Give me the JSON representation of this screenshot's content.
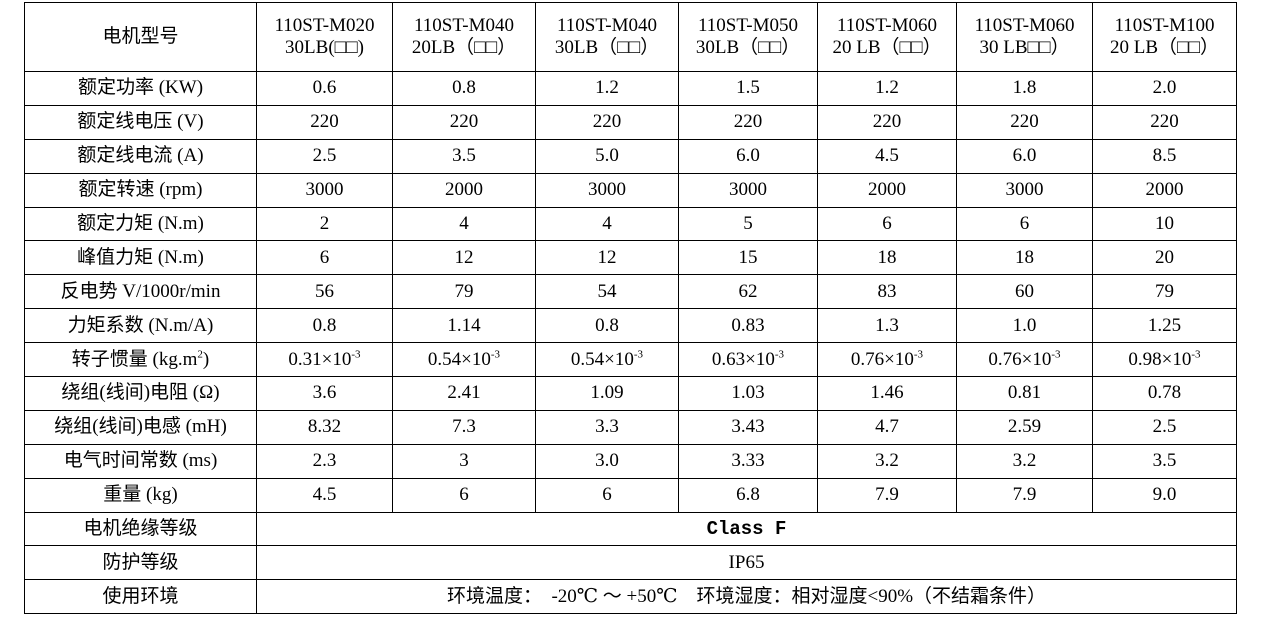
{
  "table": {
    "header": {
      "label": "电机型号",
      "columns": [
        [
          "110ST-M020",
          "30LB(□□)"
        ],
        [
          "110ST-M040",
          "20LB（□□）"
        ],
        [
          "110ST-M040",
          "30LB（□□）"
        ],
        [
          "110ST-M050",
          "30LB（□□）"
        ],
        [
          "110ST-M060",
          "20 LB（□□）"
        ],
        [
          "110ST-M060",
          "30 LB□□）"
        ],
        [
          "110ST-M100",
          "20 LB（□□）"
        ]
      ]
    },
    "rows": [
      {
        "label": "额定功率 (KW)",
        "values": [
          "0.6",
          "0.8",
          "1.2",
          "1.5",
          "1.2",
          "1.8",
          "2.0"
        ]
      },
      {
        "label": "额定线电压 (V)",
        "values": [
          "220",
          "220",
          "220",
          "220",
          "220",
          "220",
          "220"
        ]
      },
      {
        "label": "额定线电流 (A)",
        "values": [
          "2.5",
          "3.5",
          "5.0",
          "6.0",
          "4.5",
          "6.0",
          "8.5"
        ]
      },
      {
        "label": "额定转速 (rpm)",
        "values": [
          "3000",
          "2000",
          "3000",
          "3000",
          "2000",
          "3000",
          "2000"
        ]
      },
      {
        "label": "额定力矩 (N.m)",
        "values": [
          "2",
          "4",
          "4",
          "5",
          "6",
          "6",
          "10"
        ]
      },
      {
        "label": "峰值力矩 (N.m)",
        "values": [
          "6",
          "12",
          "12",
          "15",
          "18",
          "18",
          "20"
        ]
      },
      {
        "label": "反电势 V/1000r/min",
        "values": [
          "56",
          "79",
          "54",
          "62",
          "83",
          "60",
          "79"
        ]
      },
      {
        "label": "力矩系数 (N.m/A)",
        "values": [
          "0.8",
          "1.14",
          "0.8",
          "0.83",
          "1.3",
          "1.0",
          "1.25"
        ]
      },
      {
        "label": {
          "text": "转子惯量 (kg.m",
          "sup": "2",
          "after": ")"
        },
        "values": [
          {
            "text": "0.31×10",
            "sup": "-3"
          },
          {
            "text": "0.54×10",
            "sup": "-3"
          },
          {
            "text": "0.54×10",
            "sup": "-3"
          },
          {
            "text": "0.63×10",
            "sup": "-3"
          },
          {
            "text": "0.76×10",
            "sup": "-3"
          },
          {
            "text": "0.76×10",
            "sup": "-3"
          },
          {
            "text": "0.98×10",
            "sup": "-3"
          }
        ]
      },
      {
        "label": "绕组(线间)电阻 (Ω)",
        "values": [
          "3.6",
          "2.41",
          "1.09",
          "1.03",
          "1.46",
          "0.81",
          "0.78"
        ]
      },
      {
        "label": "绕组(线间)电感 (mH)",
        "values": [
          "8.32",
          "7.3",
          "3.3",
          "3.43",
          "4.7",
          "2.59",
          "2.5"
        ]
      },
      {
        "label": "电气时间常数 (ms)",
        "values": [
          "2.3",
          "3",
          "3.0",
          "3.33",
          "3.2",
          "3.2",
          "3.5"
        ]
      },
      {
        "label": "重量 (kg)",
        "values": [
          "4.5",
          "6",
          "6",
          "6.8",
          "7.9",
          "7.9",
          "9.0"
        ]
      },
      {
        "label": "电机绝缘等级",
        "value": "Class F"
      },
      {
        "label": "防护等级",
        "value": "IP65"
      },
      {
        "label": "使用环境",
        "value": "环境温度：  -20℃ ～ +50℃    环境湿度：相对湿度<90%（不结霜条件）"
      }
    ]
  }
}
